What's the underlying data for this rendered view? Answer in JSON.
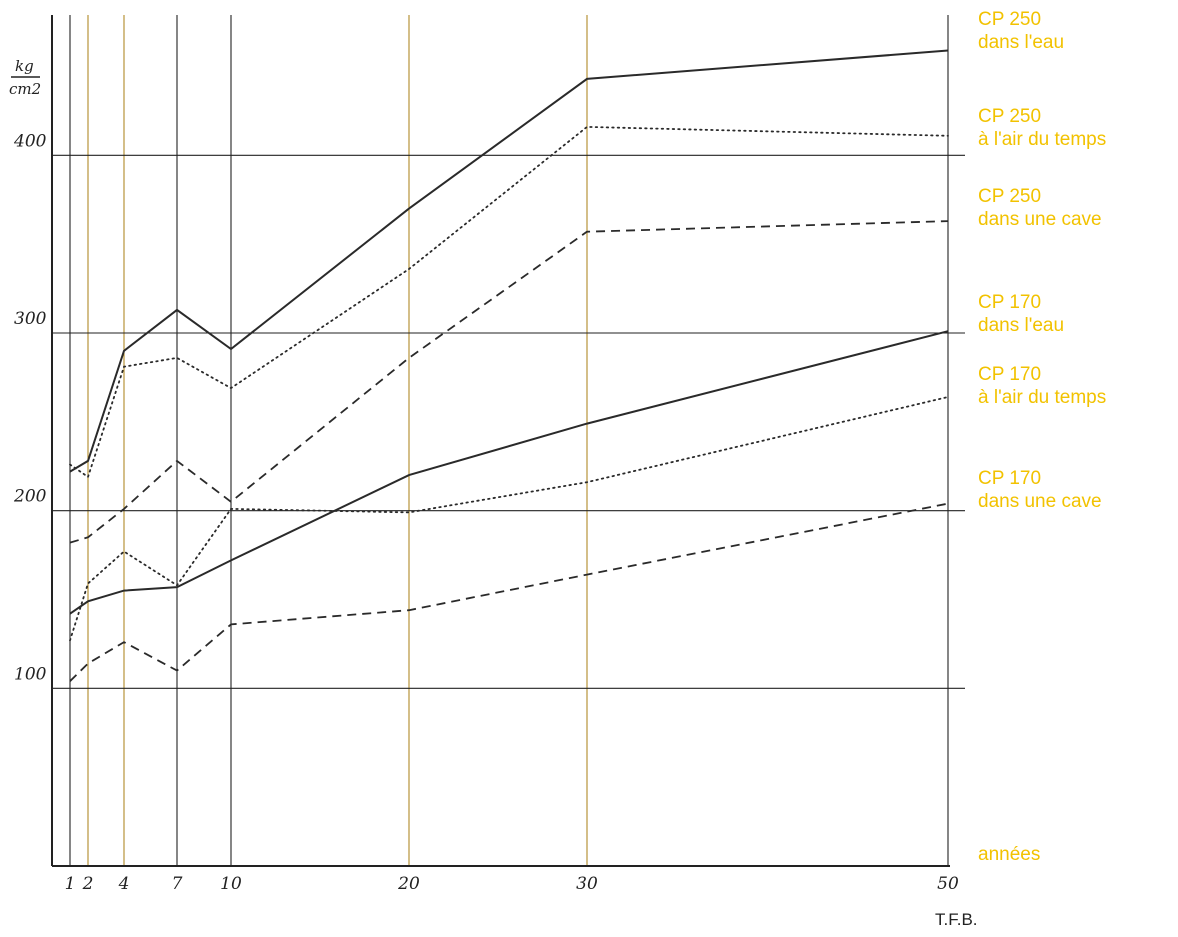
{
  "chart_data": {
    "type": "line",
    "title": "",
    "y_unit": {
      "numerator": "kg",
      "denominator": "cm2"
    },
    "x_label": "années",
    "credit": "T.F.B.",
    "x_ticks": [
      "1",
      "2",
      "4",
      "7",
      "10",
      "20",
      "30",
      "50"
    ],
    "y_ticks": [
      "100",
      "200",
      "300",
      "400"
    ],
    "xlim": [
      0,
      50
    ],
    "ylim": [
      0,
      480
    ],
    "grid": true,
    "line_colors": {
      "axis": "#222222",
      "grid": "#222222",
      "vgrid_tint": "#b08a28",
      "legend": "#f2c200"
    },
    "series": [
      {
        "name": "CP 250\ndans l'eau",
        "style": "solid",
        "x": [
          1,
          2,
          4,
          7,
          10,
          20,
          30,
          50
        ],
        "y": [
          222,
          228,
          290,
          313,
          291,
          370,
          443,
          459
        ]
      },
      {
        "name": "CP 250\nà l'air du temps",
        "style": "dotted",
        "x": [
          1,
          2,
          4,
          7,
          10,
          20,
          30,
          50
        ],
        "y": [
          226,
          219,
          281,
          286,
          269,
          336,
          416,
          411
        ]
      },
      {
        "name": "CP 250\ndans une cave",
        "style": "dashed",
        "x": [
          1,
          2,
          4,
          7,
          10,
          20,
          30,
          50
        ],
        "y": [
          182,
          185,
          201,
          228,
          205,
          286,
          357,
          363
        ]
      },
      {
        "name": "CP 170\ndans l'eau",
        "style": "solid",
        "x": [
          1,
          2,
          4,
          7,
          10,
          20,
          30,
          50
        ],
        "y": [
          142,
          149,
          155,
          157,
          172,
          220,
          249,
          301
        ]
      },
      {
        "name": "CP 170\nà l'air du temps",
        "style": "dotted",
        "x": [
          1,
          2,
          4,
          7,
          10,
          20,
          30,
          50
        ],
        "y": [
          127,
          159,
          177,
          158,
          201,
          199,
          216,
          264
        ]
      },
      {
        "name": "CP 170\ndans une cave",
        "style": "dashed",
        "x": [
          1,
          2,
          4,
          7,
          10,
          20,
          30,
          50
        ],
        "y": [
          104,
          114,
          126,
          110,
          136,
          144,
          164,
          204
        ]
      }
    ]
  }
}
